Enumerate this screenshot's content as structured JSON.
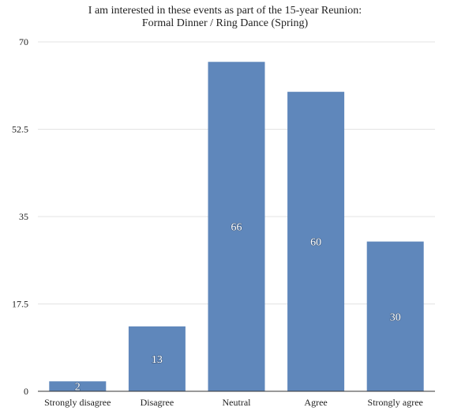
{
  "chart_data": {
    "type": "bar",
    "title": "I am interested in these events as part of the 15-year Reunion:",
    "subtitle": "Formal Dinner / Ring Dance (Spring)",
    "categories": [
      "Strongly disagree",
      "Disagree",
      "Neutral",
      "Agree",
      "Strongly agree"
    ],
    "values": [
      2,
      13,
      66,
      60,
      30
    ],
    "data_labels": [
      "2",
      "13",
      "66",
      "60",
      "30"
    ],
    "ylim": [
      0,
      70
    ],
    "yticks": [
      "0",
      "17.5",
      "35",
      "52.5",
      "70"
    ],
    "ytick_values": [
      0,
      17.5,
      35,
      52.5,
      70
    ],
    "xlabel": "",
    "ylabel": "",
    "grid": true,
    "legend": "none",
    "bar_color": "#5f87bb"
  }
}
